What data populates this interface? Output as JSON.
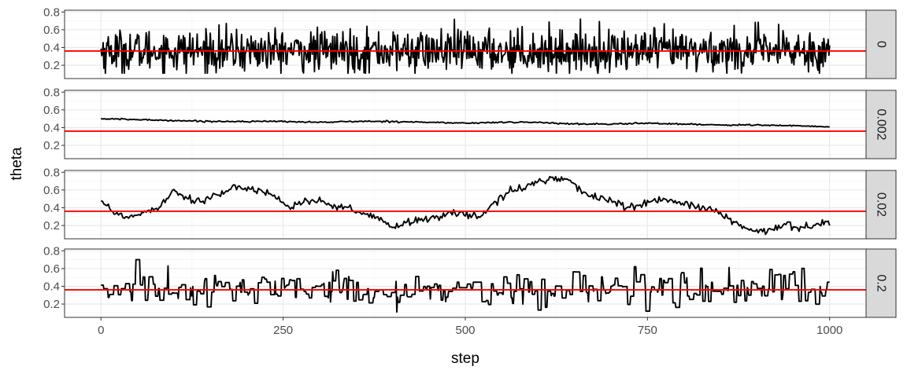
{
  "chart_data": {
    "type": "line",
    "layout": "faceted-rows",
    "xlabel": "step",
    "ylabel": "theta",
    "xlim": [
      -50,
      1050
    ],
    "ylim": [
      0.05,
      0.82
    ],
    "x_ticks": [
      0,
      250,
      500,
      750,
      1000
    ],
    "x_tick_labels": [
      "0",
      "250",
      "500",
      "750",
      "1000"
    ],
    "y_ticks": [
      0.2,
      0.4,
      0.6,
      0.8
    ],
    "y_tick_labels": [
      "0.2",
      "0.4",
      "0.6",
      "0.8"
    ],
    "reference_line": {
      "y": 0.36,
      "color": "#ff0000"
    },
    "line_color": "#000000",
    "strip_fill": "#d9d9d9",
    "panel_border": "#333333",
    "grid_major": "#ebebeb",
    "grid_minor": "#f5f5f5",
    "facets": [
      {
        "label": "0",
        "model": "iid-noise",
        "x": [
          0,
          1000
        ],
        "mean": 0.36,
        "sd": 0.12,
        "min": 0.11,
        "max": 0.75
      },
      {
        "label": "0.002",
        "model": "keyframes",
        "x": [
          0,
          50,
          100,
          150,
          200,
          250,
          300,
          350,
          400,
          450,
          500,
          550,
          600,
          650,
          700,
          750,
          800,
          850,
          900,
          950,
          1000
        ],
        "values": [
          0.5,
          0.49,
          0.48,
          0.47,
          0.47,
          0.47,
          0.46,
          0.47,
          0.47,
          0.46,
          0.45,
          0.46,
          0.46,
          0.44,
          0.44,
          0.45,
          0.44,
          0.43,
          0.43,
          0.42,
          0.41
        ]
      },
      {
        "label": "0.02",
        "model": "keyframes",
        "x": [
          0,
          20,
          40,
          60,
          80,
          100,
          120,
          140,
          160,
          180,
          200,
          220,
          240,
          260,
          280,
          300,
          320,
          340,
          360,
          380,
          400,
          420,
          440,
          460,
          480,
          500,
          520,
          540,
          560,
          580,
          600,
          620,
          640,
          660,
          680,
          700,
          720,
          740,
          760,
          780,
          800,
          820,
          840,
          860,
          880,
          900,
          920,
          940,
          960,
          980,
          1000
        ],
        "values": [
          0.5,
          0.32,
          0.3,
          0.35,
          0.42,
          0.6,
          0.5,
          0.48,
          0.55,
          0.6,
          0.63,
          0.6,
          0.52,
          0.4,
          0.48,
          0.47,
          0.4,
          0.4,
          0.32,
          0.28,
          0.18,
          0.24,
          0.25,
          0.3,
          0.35,
          0.32,
          0.3,
          0.45,
          0.58,
          0.62,
          0.7,
          0.74,
          0.72,
          0.58,
          0.52,
          0.48,
          0.4,
          0.42,
          0.5,
          0.48,
          0.44,
          0.4,
          0.38,
          0.28,
          0.18,
          0.12,
          0.15,
          0.22,
          0.18,
          0.2,
          0.25
        ]
      },
      {
        "label": "0.2",
        "model": "blocky-noise",
        "x": [
          0,
          1000
        ],
        "mean": 0.36,
        "sd": 0.1,
        "min": 0.11,
        "max": 0.7
      }
    ]
  }
}
